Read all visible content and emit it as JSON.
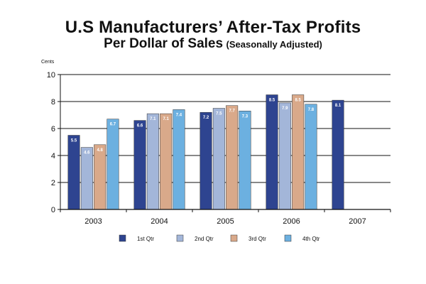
{
  "chart_data": {
    "type": "bar",
    "title": "U.S Manufacturers’ After-Tax Profits",
    "subtitle": "Per Dollar of Sales",
    "subtitle_note": "(Seasonally Adjusted)",
    "ylabel": "Cents",
    "xlabel": "",
    "ylim": [
      0,
      10
    ],
    "yticks": [
      0,
      2,
      4,
      6,
      8,
      10
    ],
    "grid": true,
    "legend_position": "bottom",
    "categories": [
      "2003",
      "2004",
      "2005",
      "2006",
      "2007"
    ],
    "series": [
      {
        "name": "1st Qtr",
        "color": "#2e4490",
        "values": [
          5.5,
          6.6,
          7.2,
          8.5,
          8.1
        ],
        "labels": [
          "5.5",
          "6.6",
          "7.2",
          "8.5",
          "8.1"
        ]
      },
      {
        "name": "2nd Qtr",
        "color": "#a3b6d9",
        "values": [
          4.6,
          7.1,
          7.5,
          7.9,
          null
        ],
        "labels": [
          "4.6",
          "7.1",
          "7.5",
          "7.9",
          null
        ]
      },
      {
        "name": "3rd Qtr",
        "color": "#d9a98a",
        "values": [
          4.8,
          7.1,
          7.7,
          8.5,
          null
        ],
        "labels": [
          "4.8",
          "7.1",
          "7.7",
          "8.5",
          null
        ]
      },
      {
        "name": "4th Qtr",
        "color": "#6cb0e0",
        "values": [
          6.7,
          7.4,
          7.3,
          7.8,
          null
        ],
        "labels": [
          "6.7",
          "7.4",
          "7.3",
          "7.8",
          null
        ]
      }
    ]
  }
}
